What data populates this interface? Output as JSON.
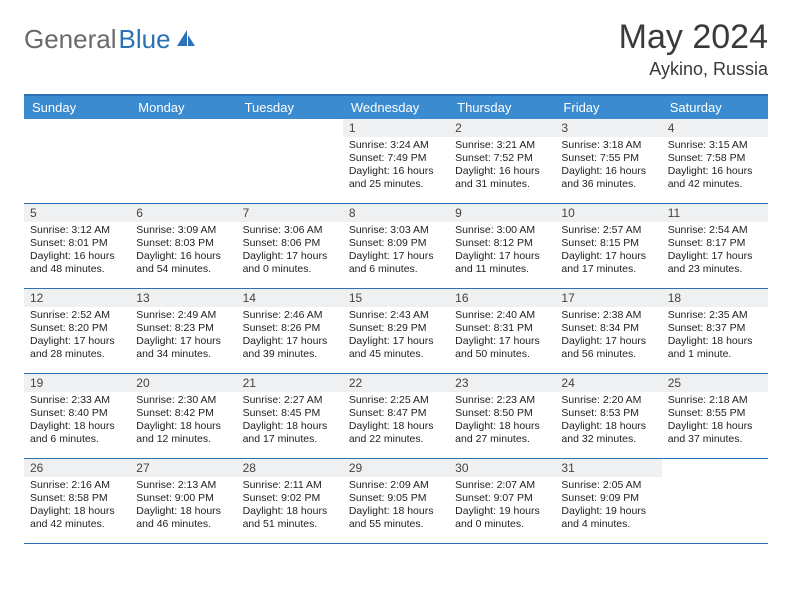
{
  "brand": {
    "part1": "General",
    "part2": "Blue"
  },
  "title": {
    "month": "May 2024",
    "location": "Aykino, Russia"
  },
  "colors": {
    "header_bar": "#3b8bd0",
    "rule": "#2a72b5",
    "daynum_bg": "#eef0f2",
    "text": "#222222",
    "background": "#ffffff"
  },
  "font": {
    "title_size_pt": 26,
    "location_size_pt": 14,
    "header_size_pt": 10,
    "cell_size_pt": 8
  },
  "day_headers": [
    "Sunday",
    "Monday",
    "Tuesday",
    "Wednesday",
    "Thursday",
    "Friday",
    "Saturday"
  ],
  "weeks": [
    [
      null,
      null,
      null,
      {
        "n": "1",
        "sr": "3:24 AM",
        "ss": "7:49 PM",
        "dl": "16 hours and 25 minutes."
      },
      {
        "n": "2",
        "sr": "3:21 AM",
        "ss": "7:52 PM",
        "dl": "16 hours and 31 minutes."
      },
      {
        "n": "3",
        "sr": "3:18 AM",
        "ss": "7:55 PM",
        "dl": "16 hours and 36 minutes."
      },
      {
        "n": "4",
        "sr": "3:15 AM",
        "ss": "7:58 PM",
        "dl": "16 hours and 42 minutes."
      }
    ],
    [
      {
        "n": "5",
        "sr": "3:12 AM",
        "ss": "8:01 PM",
        "dl": "16 hours and 48 minutes."
      },
      {
        "n": "6",
        "sr": "3:09 AM",
        "ss": "8:03 PM",
        "dl": "16 hours and 54 minutes."
      },
      {
        "n": "7",
        "sr": "3:06 AM",
        "ss": "8:06 PM",
        "dl": "17 hours and 0 minutes."
      },
      {
        "n": "8",
        "sr": "3:03 AM",
        "ss": "8:09 PM",
        "dl": "17 hours and 6 minutes."
      },
      {
        "n": "9",
        "sr": "3:00 AM",
        "ss": "8:12 PM",
        "dl": "17 hours and 11 minutes."
      },
      {
        "n": "10",
        "sr": "2:57 AM",
        "ss": "8:15 PM",
        "dl": "17 hours and 17 minutes."
      },
      {
        "n": "11",
        "sr": "2:54 AM",
        "ss": "8:17 PM",
        "dl": "17 hours and 23 minutes."
      }
    ],
    [
      {
        "n": "12",
        "sr": "2:52 AM",
        "ss": "8:20 PM",
        "dl": "17 hours and 28 minutes."
      },
      {
        "n": "13",
        "sr": "2:49 AM",
        "ss": "8:23 PM",
        "dl": "17 hours and 34 minutes."
      },
      {
        "n": "14",
        "sr": "2:46 AM",
        "ss": "8:26 PM",
        "dl": "17 hours and 39 minutes."
      },
      {
        "n": "15",
        "sr": "2:43 AM",
        "ss": "8:29 PM",
        "dl": "17 hours and 45 minutes."
      },
      {
        "n": "16",
        "sr": "2:40 AM",
        "ss": "8:31 PM",
        "dl": "17 hours and 50 minutes."
      },
      {
        "n": "17",
        "sr": "2:38 AM",
        "ss": "8:34 PM",
        "dl": "17 hours and 56 minutes."
      },
      {
        "n": "18",
        "sr": "2:35 AM",
        "ss": "8:37 PM",
        "dl": "18 hours and 1 minute."
      }
    ],
    [
      {
        "n": "19",
        "sr": "2:33 AM",
        "ss": "8:40 PM",
        "dl": "18 hours and 6 minutes."
      },
      {
        "n": "20",
        "sr": "2:30 AM",
        "ss": "8:42 PM",
        "dl": "18 hours and 12 minutes."
      },
      {
        "n": "21",
        "sr": "2:27 AM",
        "ss": "8:45 PM",
        "dl": "18 hours and 17 minutes."
      },
      {
        "n": "22",
        "sr": "2:25 AM",
        "ss": "8:47 PM",
        "dl": "18 hours and 22 minutes."
      },
      {
        "n": "23",
        "sr": "2:23 AM",
        "ss": "8:50 PM",
        "dl": "18 hours and 27 minutes."
      },
      {
        "n": "24",
        "sr": "2:20 AM",
        "ss": "8:53 PM",
        "dl": "18 hours and 32 minutes."
      },
      {
        "n": "25",
        "sr": "2:18 AM",
        "ss": "8:55 PM",
        "dl": "18 hours and 37 minutes."
      }
    ],
    [
      {
        "n": "26",
        "sr": "2:16 AM",
        "ss": "8:58 PM",
        "dl": "18 hours and 42 minutes."
      },
      {
        "n": "27",
        "sr": "2:13 AM",
        "ss": "9:00 PM",
        "dl": "18 hours and 46 minutes."
      },
      {
        "n": "28",
        "sr": "2:11 AM",
        "ss": "9:02 PM",
        "dl": "18 hours and 51 minutes."
      },
      {
        "n": "29",
        "sr": "2:09 AM",
        "ss": "9:05 PM",
        "dl": "18 hours and 55 minutes."
      },
      {
        "n": "30",
        "sr": "2:07 AM",
        "ss": "9:07 PM",
        "dl": "19 hours and 0 minutes."
      },
      {
        "n": "31",
        "sr": "2:05 AM",
        "ss": "9:09 PM",
        "dl": "19 hours and 4 minutes."
      },
      null
    ]
  ],
  "labels": {
    "sunrise": "Sunrise:",
    "sunset": "Sunset:",
    "daylight": "Daylight:"
  }
}
